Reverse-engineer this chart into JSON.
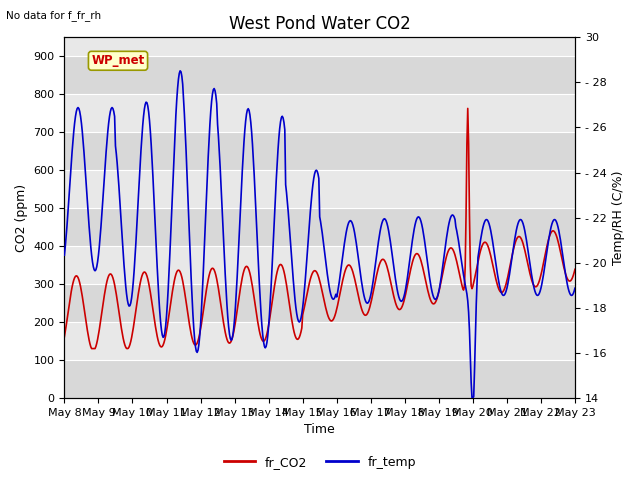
{
  "title": "West Pond Water CO2",
  "subtitle": "No data for f_fr_rh",
  "xlabel": "Time",
  "ylabel_left": "CO2 (ppm)",
  "ylabel_right": "Temp/RH (C/%)",
  "box_label": "WP_met",
  "legend_entries": [
    "fr_CO2",
    "fr_temp"
  ],
  "legend_colors": [
    "#cc0000",
    "#0000cc"
  ],
  "co2_color": "#cc0000",
  "temp_color": "#0000cc",
  "bg_color": "#e8e8e8",
  "ylim_left": [
    0,
    950
  ],
  "ylim_right": [
    14,
    30
  ],
  "yticks_left": [
    0,
    100,
    200,
    300,
    400,
    500,
    600,
    700,
    800,
    900
  ],
  "yticks_right": [
    14,
    16,
    18,
    20,
    22,
    24,
    26,
    28,
    30
  ],
  "xtick_labels": [
    "May 8",
    "May 9",
    "May 10",
    "May 11",
    "May 12",
    "May 13",
    "May 14",
    "May 15",
    "May 16",
    "May 17",
    "May 18",
    "May 19",
    "May 20",
    "May 21",
    "May 22",
    "May 23"
  ],
  "x_days": [
    8,
    9,
    10,
    11,
    12,
    13,
    14,
    15,
    16,
    17,
    18,
    19,
    20,
    21,
    22,
    23
  ],
  "title_fontsize": 12,
  "axis_fontsize": 9,
  "tick_fontsize": 8,
  "linewidth": 1.2
}
